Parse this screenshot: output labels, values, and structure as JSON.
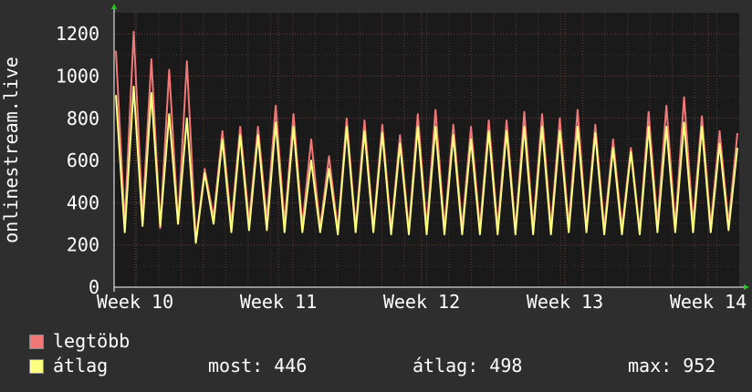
{
  "chart_data": {
    "type": "line",
    "ylabel": "onlinestream.live",
    "ylim": [
      0,
      1300
    ],
    "yticks": [
      0,
      200,
      400,
      600,
      800,
      1000,
      1200
    ],
    "xticks": [
      "Week 10",
      "Week 11",
      "Week 12",
      "Week 13",
      "Week 14"
    ],
    "grid": true,
    "background": "#1a1a1a",
    "series": [
      {
        "name": "legtöbb",
        "color": "#f07878",
        "values": [
          1120,
          300,
          1210,
          330,
          1080,
          280,
          1030,
          300,
          1070,
          220,
          560,
          330,
          740,
          300,
          760,
          310,
          760,
          320,
          860,
          300,
          820,
          290,
          700,
          280,
          620,
          270,
          800,
          280,
          790,
          280,
          770,
          270,
          720,
          270,
          820,
          280,
          840,
          280,
          770,
          280,
          760,
          280,
          790,
          280,
          790,
          270,
          830,
          280,
          820,
          280,
          800,
          290,
          840,
          280,
          770,
          280,
          700,
          280,
          660,
          270,
          830,
          300,
          860,
          290,
          900,
          300,
          810,
          290,
          740,
          300,
          730
        ]
      },
      {
        "name": "átlag",
        "color": "#ffff80",
        "values": [
          910,
          260,
          950,
          290,
          920,
          290,
          820,
          300,
          800,
          210,
          540,
          300,
          700,
          260,
          720,
          270,
          720,
          270,
          780,
          260,
          760,
          260,
          600,
          260,
          560,
          250,
          760,
          260,
          740,
          260,
          730,
          250,
          680,
          250,
          760,
          250,
          760,
          250,
          720,
          250,
          700,
          250,
          740,
          250,
          740,
          250,
          760,
          250,
          760,
          250,
          740,
          260,
          760,
          260,
          730,
          250,
          660,
          250,
          640,
          250,
          760,
          260,
          760,
          260,
          780,
          260,
          760,
          260,
          680,
          270,
          660
        ]
      }
    ]
  },
  "legend": {
    "max_label": "legtöbb",
    "avg_label": "átlag",
    "now_text": "most: 446",
    "avg_text": "átlag: 498",
    "max_text": "max: 952"
  }
}
